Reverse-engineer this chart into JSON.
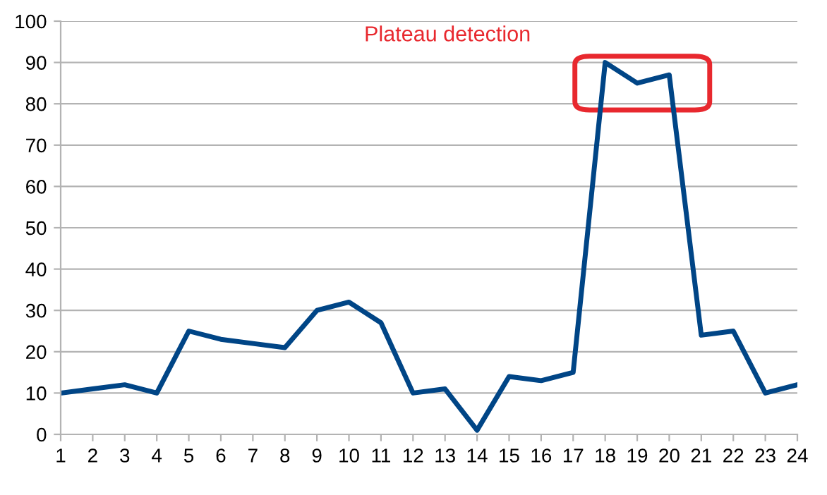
{
  "chart_data": {
    "type": "line",
    "x": [
      1,
      2,
      3,
      4,
      5,
      6,
      7,
      8,
      9,
      10,
      11,
      12,
      13,
      14,
      15,
      16,
      17,
      18,
      19,
      20,
      21,
      22,
      23,
      24
    ],
    "series": [
      {
        "color": "#004586",
        "values": [
          10,
          11,
          12,
          10,
          25,
          23,
          22,
          21,
          30,
          32,
          27,
          10,
          11,
          1,
          14,
          13,
          15,
          90,
          85,
          87,
          24,
          25,
          10,
          12
        ]
      }
    ],
    "xlim": [
      1,
      24
    ],
    "xticks": [
      1,
      2,
      3,
      4,
      5,
      6,
      7,
      8,
      9,
      10,
      11,
      12,
      13,
      14,
      15,
      16,
      17,
      18,
      19,
      20,
      21,
      22,
      23,
      24
    ],
    "ylim": [
      0,
      100
    ],
    "yticks": [
      0,
      10,
      20,
      30,
      40,
      50,
      60,
      70,
      80,
      90,
      100
    ],
    "grid": "y",
    "legend": false,
    "marker": "none",
    "line_style": "solid",
    "annotations": [
      "Plateau detection"
    ]
  }
}
